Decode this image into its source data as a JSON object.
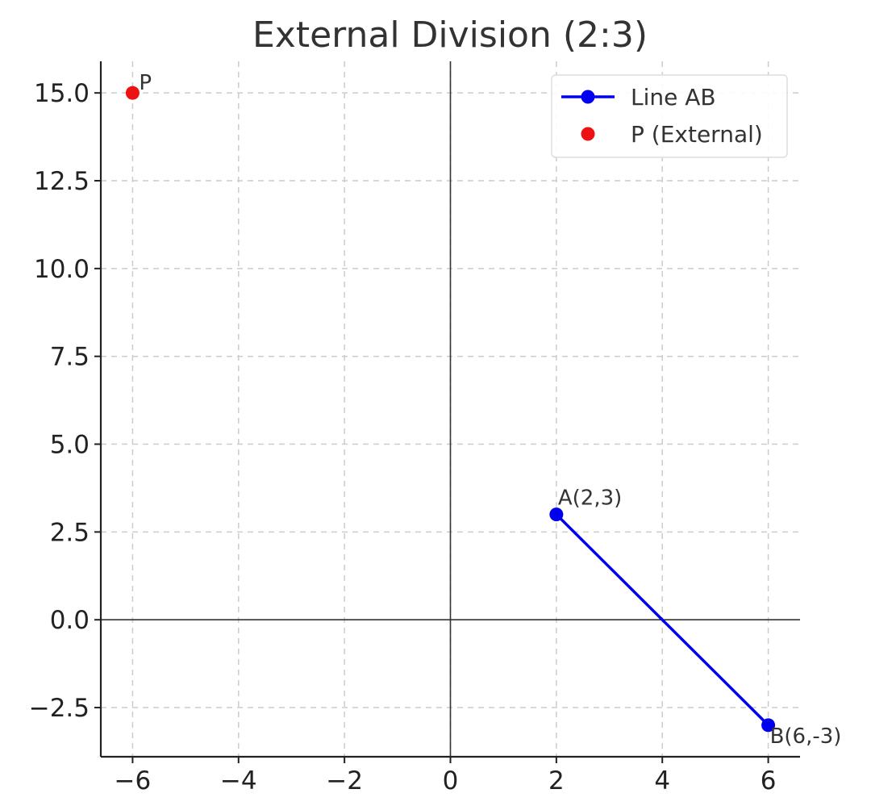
{
  "chart_data": {
    "type": "scatter",
    "title": "External Division (2:3)",
    "xlabel": "",
    "ylabel": "",
    "xlim": [
      -6.6,
      6.6
    ],
    "ylim": [
      -3.9,
      15.9
    ],
    "x_ticks": [
      -6,
      -4,
      -2,
      0,
      2,
      4,
      6
    ],
    "x_tick_labels": [
      "−6",
      "−4",
      "−2",
      "0",
      "2",
      "4",
      "6"
    ],
    "y_ticks": [
      -2.5,
      0,
      2.5,
      5,
      7.5,
      10,
      12.5,
      15
    ],
    "y_tick_labels": [
      "−2.5",
      "0.0",
      "2.5",
      "5.0",
      "7.5",
      "10.0",
      "12.5",
      "15.0"
    ],
    "grid": true,
    "axis_lines_at_zero": true,
    "legend_position": "top-right",
    "series": [
      {
        "name": "Line AB",
        "kind": "line-with-markers",
        "color": "#0000ee",
        "points": [
          {
            "x": 2,
            "y": 3,
            "label": "A(2,3)"
          },
          {
            "x": 6,
            "y": -3,
            "label": "B(6,-3)"
          }
        ]
      },
      {
        "name": "P (External)",
        "kind": "markers",
        "color": "#ee1111",
        "points": [
          {
            "x": -6,
            "y": 15,
            "label": "P"
          }
        ]
      }
    ]
  }
}
